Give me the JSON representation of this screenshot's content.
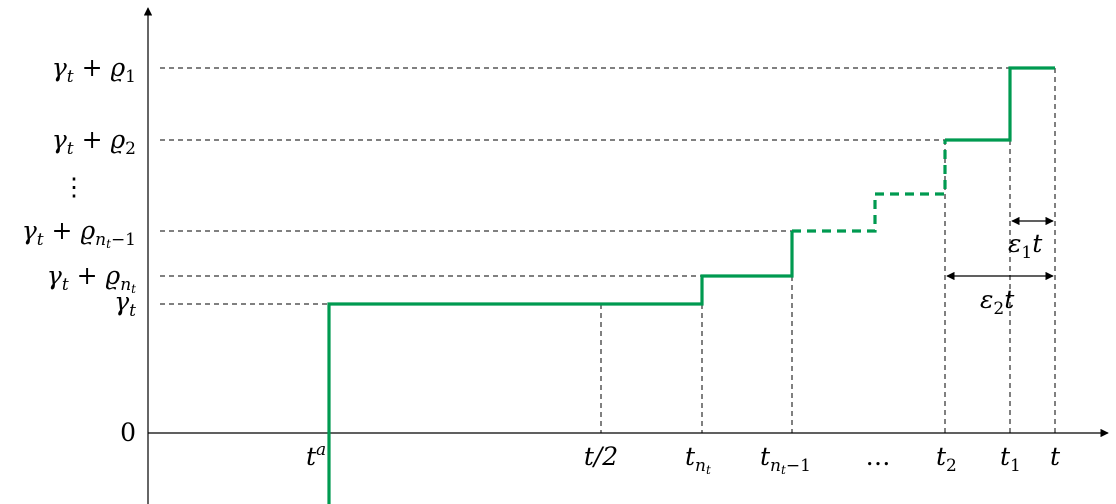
{
  "colors": {
    "step": "#009a50",
    "guide": "#000000",
    "axis": "#000000"
  },
  "y_labels": {
    "zero": "0",
    "gamma": "γt",
    "gamma_rho1": "γt + ϱ1",
    "gamma_rho2": "γt + ϱ2",
    "vdots": "⋮",
    "gamma_rho_nt_minus1": "γt + ϱnt−1",
    "gamma_rho_nt": "γt + ϱnt"
  },
  "x_labels": {
    "ta": "ta",
    "t_half": "t/2",
    "t_nt": "tnt",
    "t_nt_minus1": "tnt−1",
    "dots": "…",
    "t2": "t2",
    "t1": "t1",
    "t": "t"
  },
  "annotations": {
    "eps1": "ε1t",
    "eps2": "ε2t"
  }
}
